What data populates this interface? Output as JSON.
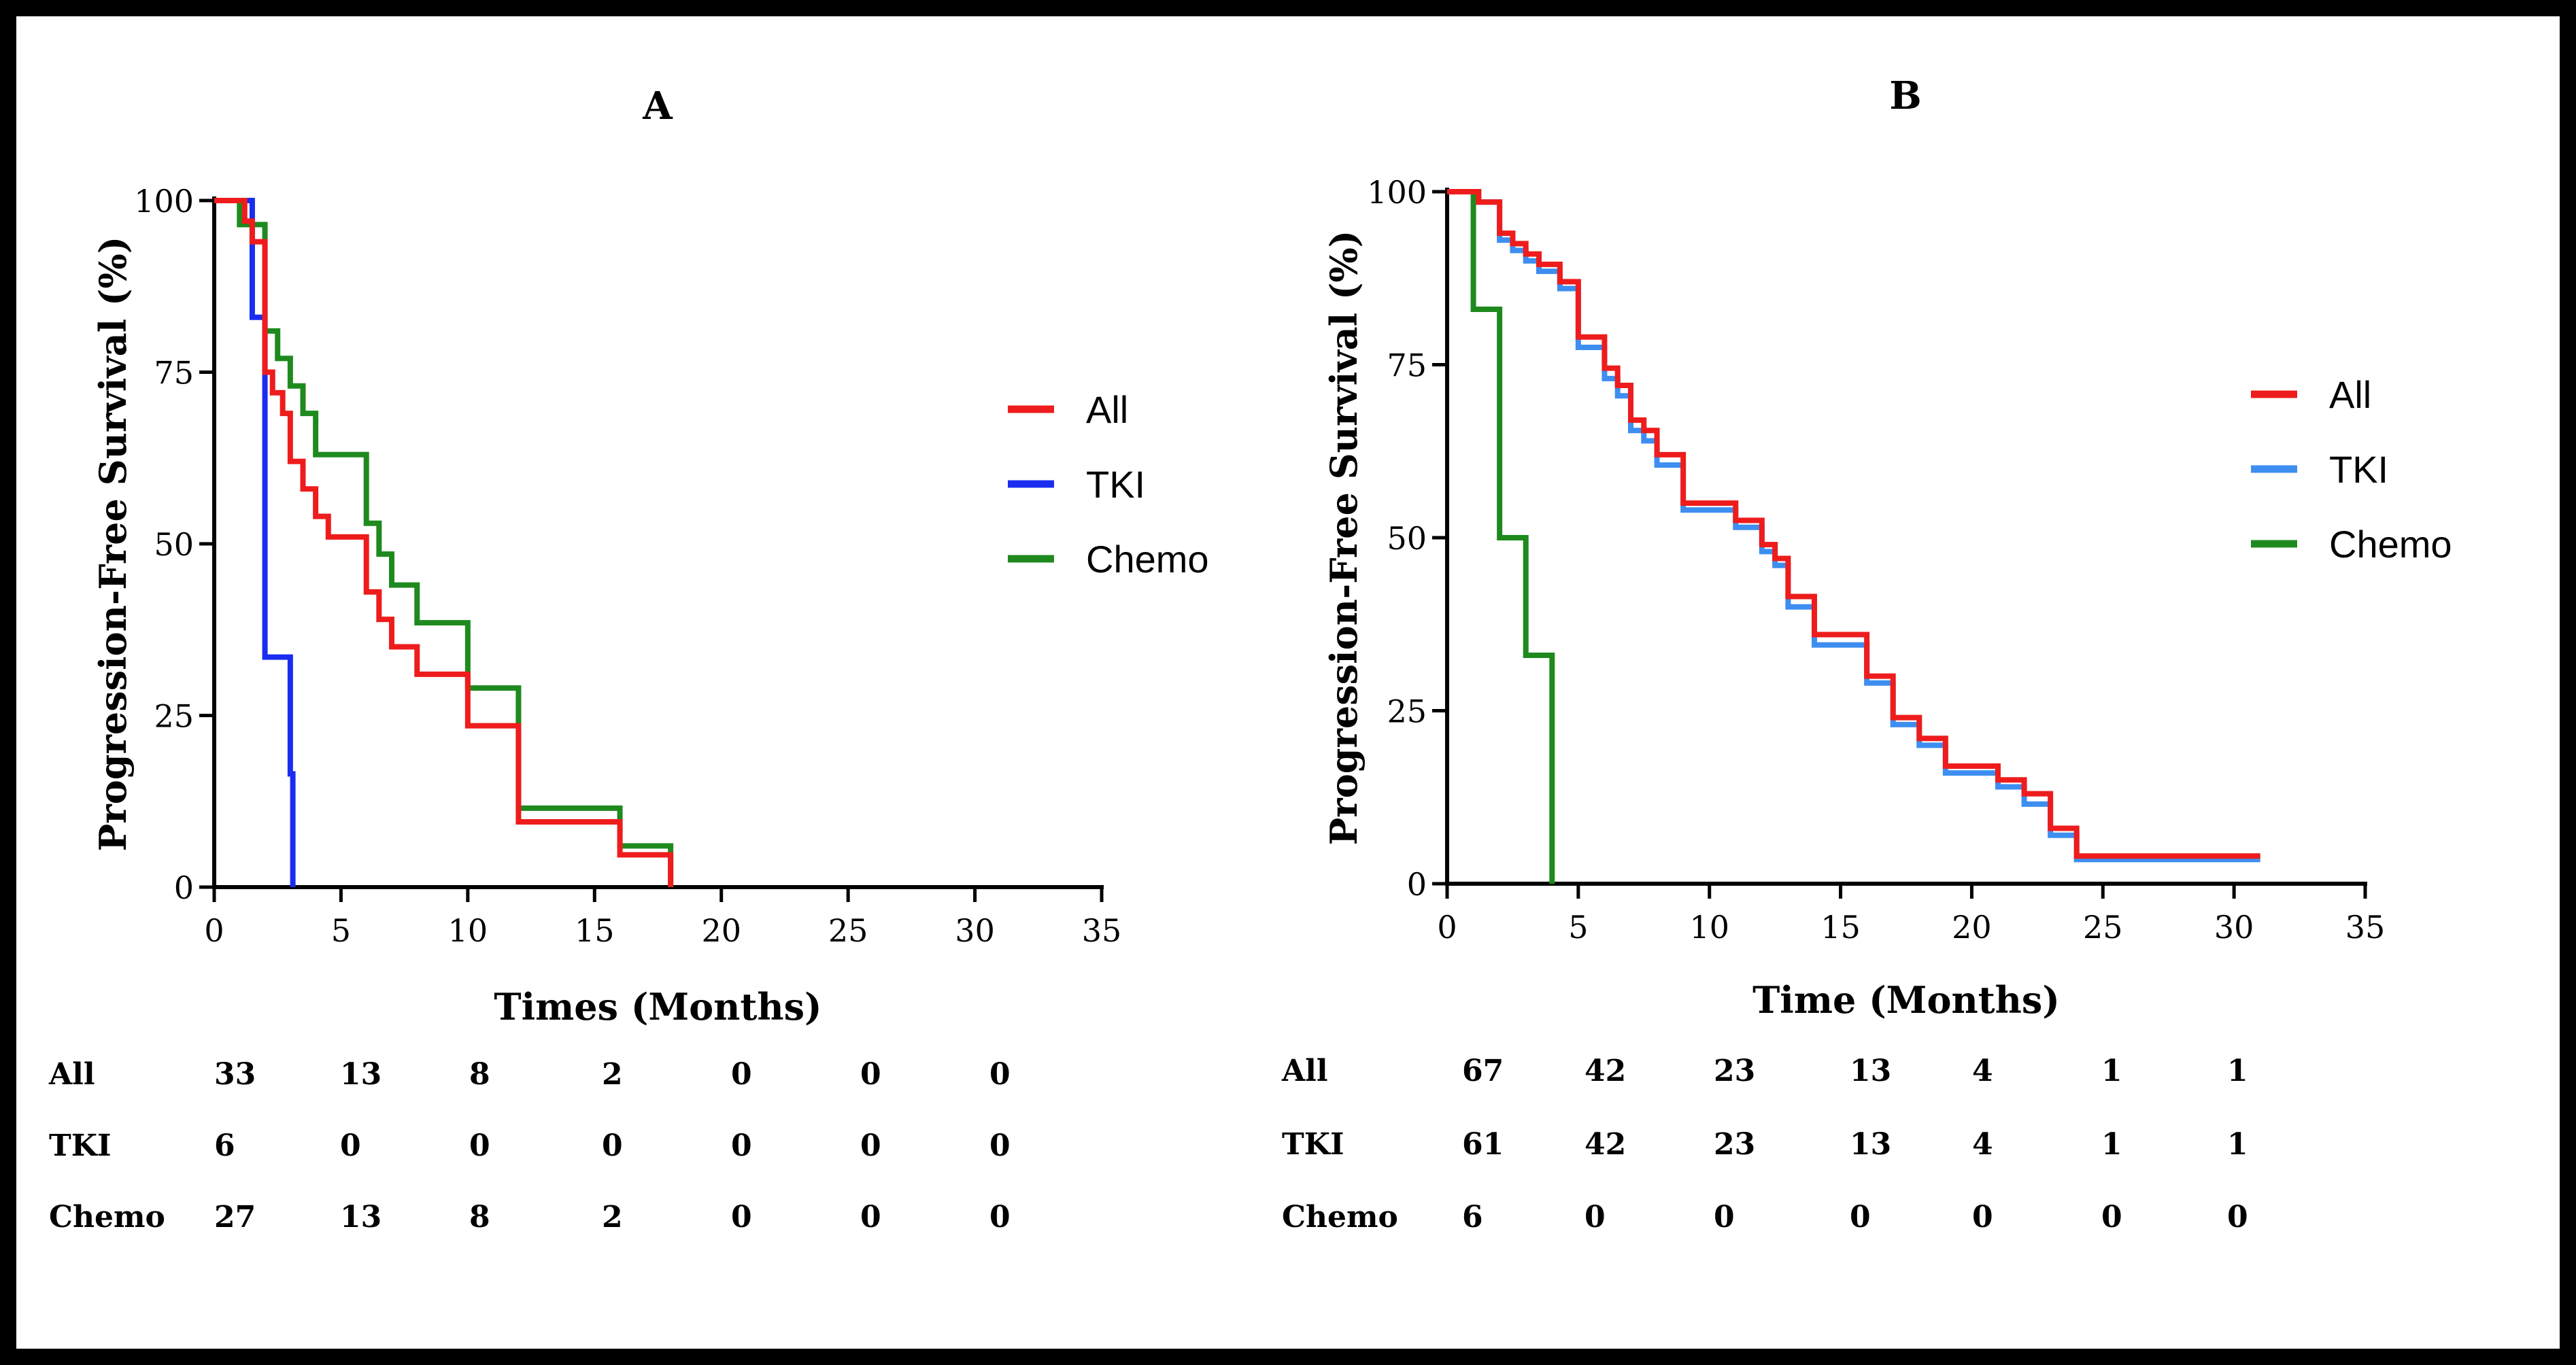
{
  "colors": {
    "all": "#ee1c1c",
    "tki": "#1a2cf0",
    "tki_b": "#3d8ef0",
    "chemo": "#1e8a1e",
    "axis": "#000000"
  },
  "chart_data": [
    {
      "type": "line",
      "step": true,
      "title": "A",
      "xlabel": "Times (Months)",
      "ylabel": "Progression-Free Survival (%)",
      "xlim": [
        0,
        35
      ],
      "ylim": [
        0,
        100
      ],
      "xticks": [
        "0",
        "5",
        "10",
        "15",
        "20",
        "25",
        "30",
        "35"
      ],
      "yticks": [
        "0",
        "25",
        "50",
        "75",
        "100"
      ],
      "legend_position": "right",
      "series": [
        {
          "name": "All",
          "color_key": "all",
          "x": [
            0,
            1.2,
            1.5,
            2,
            2.3,
            2.7,
            3,
            3.5,
            4,
            4.5,
            6,
            6.5,
            7,
            8,
            10,
            12,
            16,
            18
          ],
          "y": [
            100,
            97,
            94,
            75,
            72,
            69,
            62,
            58,
            54,
            51,
            43,
            39,
            35,
            31,
            23.5,
            9.5,
            4.7,
            0
          ]
        },
        {
          "name": "TKI",
          "color_key": "tki",
          "x": [
            0,
            1.5,
            2,
            3,
            3.1
          ],
          "y": [
            100,
            83,
            33.5,
            16.5,
            0
          ]
        },
        {
          "name": "Chemo",
          "color_key": "chemo",
          "x": [
            0,
            1,
            2,
            2.5,
            3,
            3.5,
            4,
            4.5,
            6,
            6.5,
            7,
            8,
            10,
            12,
            16,
            18
          ],
          "y": [
            100,
            96.5,
            81,
            77,
            73,
            69,
            63,
            63,
            53,
            48.5,
            44,
            38.5,
            29,
            11.5,
            6,
            0
          ]
        }
      ],
      "risk_table": {
        "rows": [
          {
            "label": "All",
            "values": [
              "33",
              "13",
              "8",
              "2",
              "0",
              "0",
              "0"
            ]
          },
          {
            "label": "TKI",
            "values": [
              "6",
              "0",
              "0",
              "0",
              "0",
              "0",
              "0"
            ]
          },
          {
            "label": "Chemo",
            "values": [
              "27",
              "13",
              "8",
              "2",
              "0",
              "0",
              "0"
            ]
          }
        ]
      }
    },
    {
      "type": "line",
      "step": true,
      "title": "B",
      "xlabel": "Time (Months)",
      "ylabel": "Progression-Free Survival (%)",
      "xlim": [
        0,
        35
      ],
      "ylim": [
        0,
        100
      ],
      "xticks": [
        "0",
        "5",
        "10",
        "15",
        "20",
        "25",
        "30",
        "35"
      ],
      "yticks": [
        "0",
        "25",
        "50",
        "75",
        "100"
      ],
      "legend_position": "right",
      "series": [
        {
          "name": "All",
          "color_key": "all",
          "x": [
            0,
            1.2,
            2,
            2.5,
            3,
            3.5,
            4.3,
            5,
            6,
            6.5,
            7,
            7.5,
            8,
            9,
            11,
            12,
            12.5,
            13,
            14,
            16,
            17,
            18,
            19,
            21,
            22,
            23,
            24,
            26,
            31
          ],
          "y": [
            100,
            98.5,
            94,
            92.5,
            91,
            89.5,
            87,
            79,
            74.5,
            72,
            67,
            65.5,
            62,
            55,
            52.5,
            49,
            47,
            41.5,
            36,
            30,
            24,
            21,
            17,
            15,
            13,
            8,
            4,
            4,
            4
          ]
        },
        {
          "name": "TKI",
          "color_key": "tki_b",
          "x": [
            0,
            1.2,
            2,
            2.5,
            3,
            3.5,
            4.3,
            5,
            6,
            6.5,
            7,
            7.5,
            8,
            9,
            11,
            12,
            12.5,
            13,
            14,
            16,
            17,
            18,
            19,
            21,
            22,
            23,
            24,
            26,
            31
          ],
          "y": [
            100,
            98.5,
            93,
            91.5,
            90,
            88.5,
            86,
            77.5,
            73,
            70.5,
            65.5,
            64,
            60.5,
            54,
            51.5,
            48,
            46,
            40,
            34.5,
            29,
            23,
            20,
            16,
            14,
            11.5,
            7,
            3.5,
            3.5,
            3.5
          ]
        },
        {
          "name": "Chemo",
          "color_key": "chemo",
          "x": [
            0,
            1,
            2,
            3,
            4
          ],
          "y": [
            100,
            83,
            50,
            33,
            0
          ]
        }
      ],
      "risk_table": {
        "rows": [
          {
            "label": "All",
            "values": [
              "67",
              "42",
              "23",
              "13",
              "4",
              "1",
              "1"
            ]
          },
          {
            "label": "TKI",
            "values": [
              "61",
              "42",
              "23",
              "13",
              "4",
              "1",
              "1"
            ]
          },
          {
            "label": "Chemo",
            "values": [
              "6",
              "0",
              "0",
              "0",
              "0",
              "0",
              "0"
            ]
          }
        ]
      }
    }
  ]
}
